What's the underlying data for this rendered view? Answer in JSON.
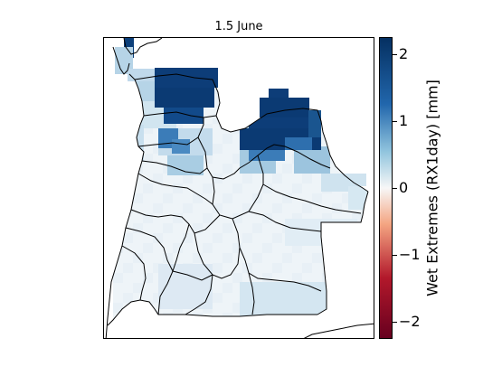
{
  "figure": {
    "title": "1.5 June",
    "colorbar": {
      "label": "Wet Extremes (RX1day) [mm]",
      "min": -2.25,
      "max": 2.25,
      "ticks": [
        2,
        1,
        0,
        -1,
        -2
      ],
      "tick_labels": [
        "2",
        "1",
        "0",
        "−1",
        "−2"
      ],
      "colors": {
        "top": "#053061",
        "upper": "#2166ac",
        "mid_high": "#92c5de",
        "center": "#f7f7f7",
        "mid_low": "#f4a582",
        "lower": "#b2182b",
        "bottom": "#67001f"
      }
    },
    "map": {
      "region": "Angola",
      "grid_shown": false,
      "border_color": "#000000"
    }
  }
}
